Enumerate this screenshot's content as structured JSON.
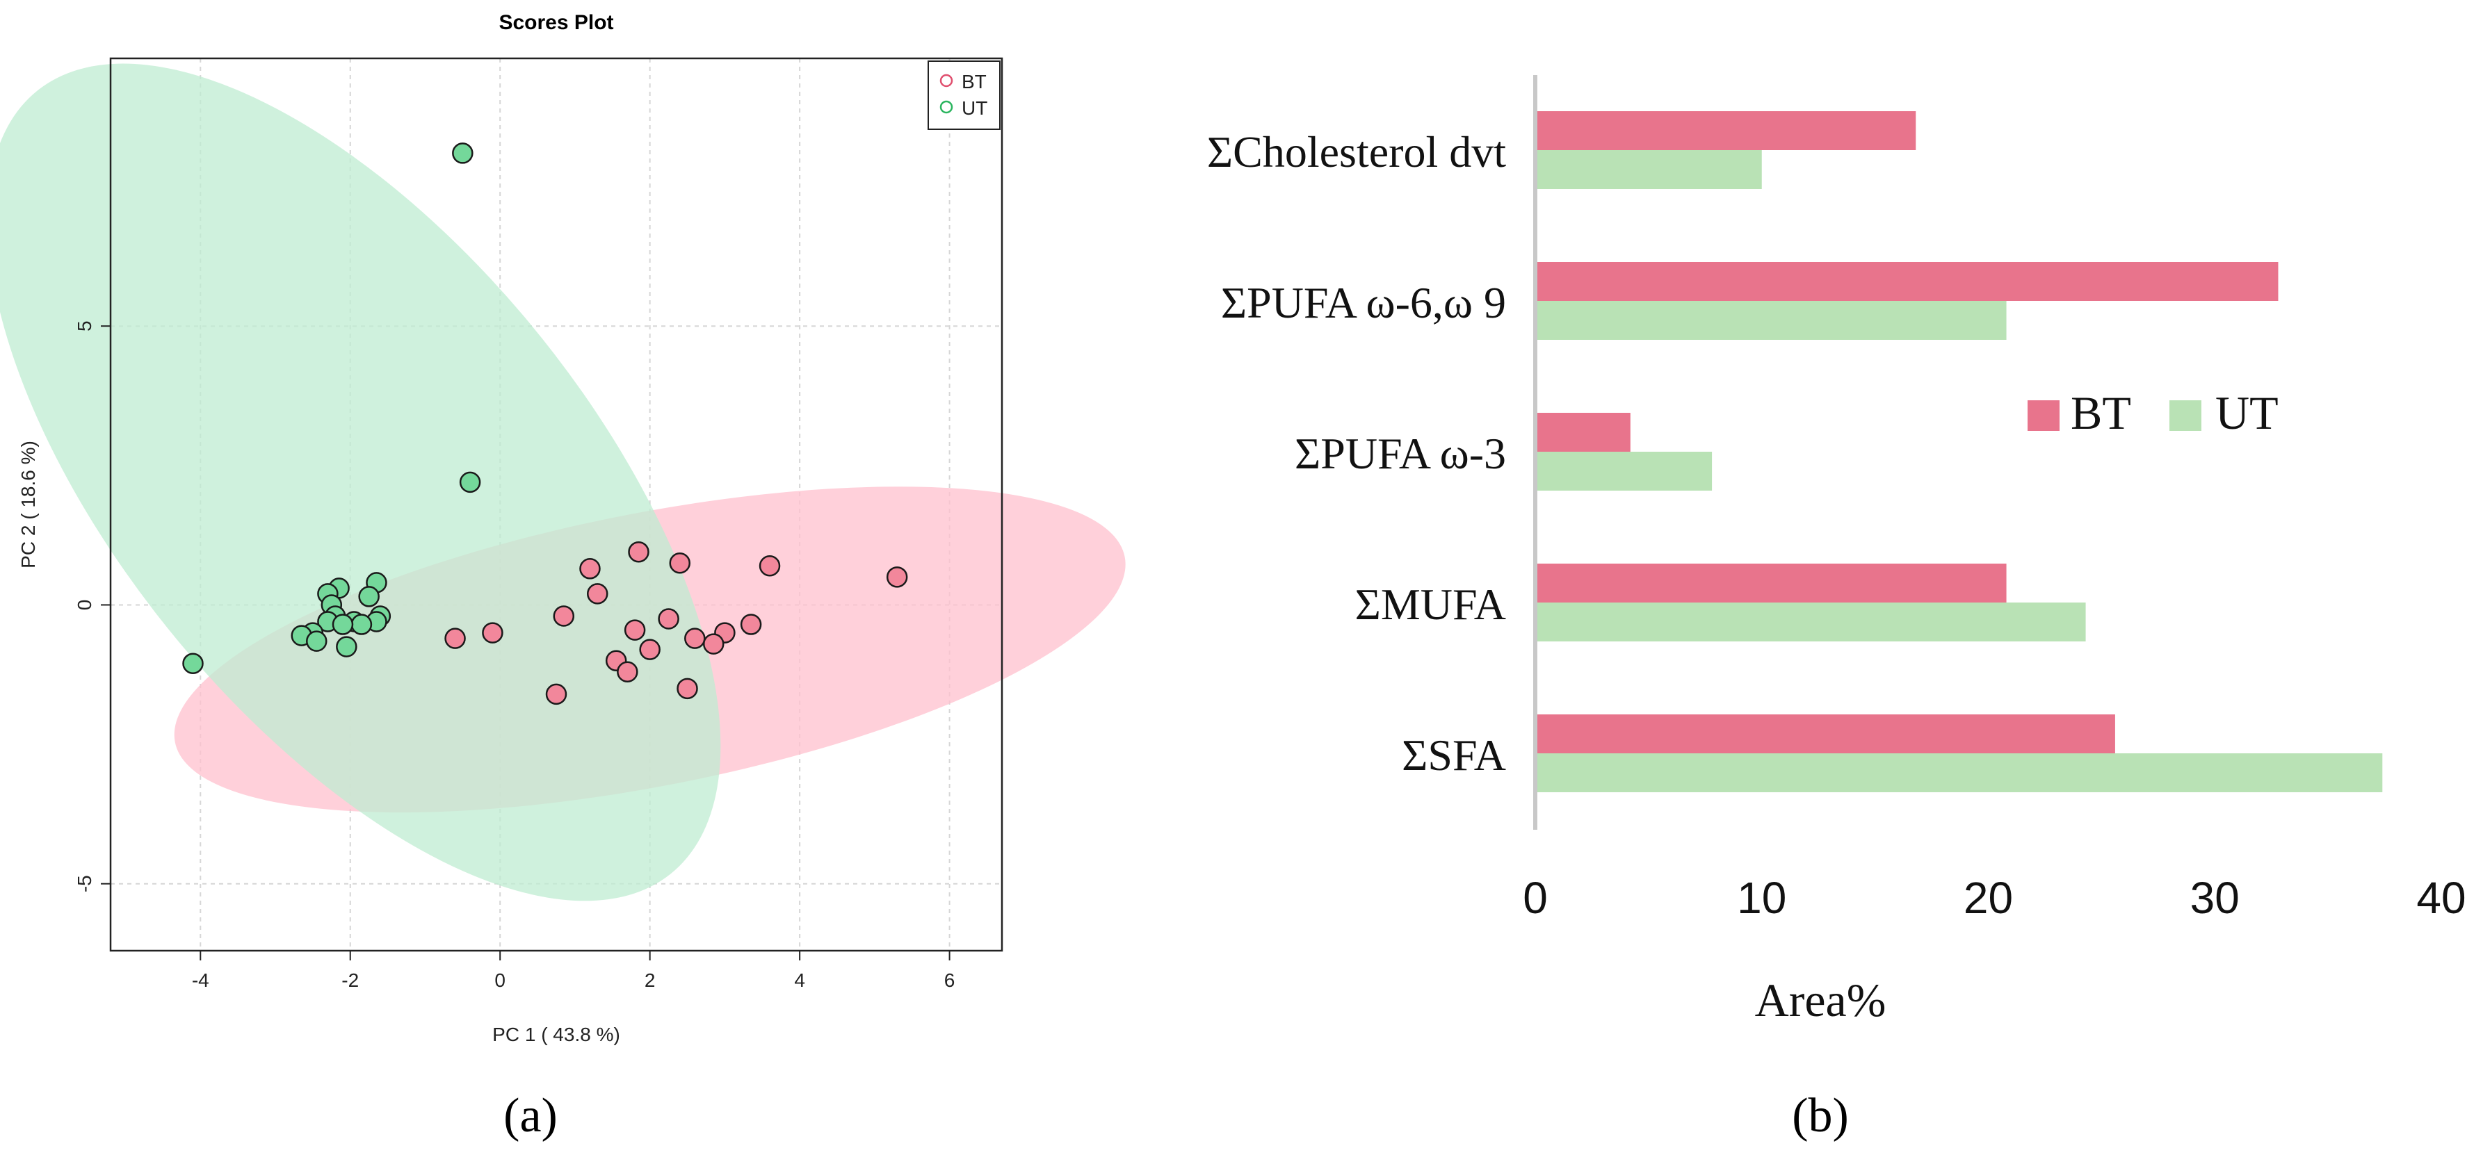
{
  "colors": {
    "bt_fill": "#f2879b",
    "bt_edge": "#d94a6a",
    "ut_fill": "#74d89a",
    "ut_edge": "#2bb55f",
    "bt_ellipse": "#ffc0cd",
    "ut_ellipse": "#bfecd2",
    "bt_bar": "#e8748c",
    "ut_bar": "#b9e2b5",
    "grid": "#d6d6d6"
  },
  "chart_data": [
    {
      "type": "scatter",
      "title": "Scores Plot",
      "xlabel": "PC 1 ( 43.8 %)",
      "ylabel": "PC 2 ( 18.6 %)",
      "xlim": [
        -5.2,
        6.7
      ],
      "ylim": [
        -6.2,
        9.8
      ],
      "x_ticks": [
        -4,
        -2,
        0,
        2,
        4,
        6
      ],
      "x_tick_labels": [
        "-4",
        "-2",
        "0",
        "2",
        "4",
        "6"
      ],
      "y_ticks": [
        -5,
        0,
        5
      ],
      "y_tick_labels": [
        "-5",
        "0",
        "5"
      ],
      "grid": true,
      "legend": {
        "position": "top-right",
        "entries": [
          "BT",
          "UT"
        ]
      },
      "ellipses": [
        {
          "group": "BT",
          "cx": 2.0,
          "cy": -0.8,
          "rx": 6.56,
          "ry": 2.41,
          "angle_deg": 15.7
        },
        {
          "group": "UT",
          "cx": -1.95,
          "cy": 2.2,
          "rx": 8.27,
          "ry": 3.45,
          "angle_deg": 117.5
        }
      ],
      "series": [
        {
          "name": "BT",
          "points": [
            [
              1.2,
              0.65
            ],
            [
              1.85,
              0.95
            ],
            [
              2.4,
              0.75
            ],
            [
              3.6,
              0.7
            ],
            [
              5.3,
              0.5
            ],
            [
              1.3,
              0.2
            ],
            [
              0.85,
              -0.2
            ],
            [
              2.25,
              -0.25
            ],
            [
              1.8,
              -0.45
            ],
            [
              3.35,
              -0.35
            ],
            [
              2.6,
              -0.6
            ],
            [
              3.0,
              -0.5
            ],
            [
              2.85,
              -0.7
            ],
            [
              -0.6,
              -0.6
            ],
            [
              -0.1,
              -0.5
            ],
            [
              2.0,
              -0.8
            ],
            [
              1.55,
              -1.0
            ],
            [
              1.7,
              -1.2
            ],
            [
              2.5,
              -1.5
            ],
            [
              0.75,
              -1.6
            ]
          ]
        },
        {
          "name": "UT",
          "points": [
            [
              -0.5,
              8.1
            ],
            [
              -0.4,
              2.2
            ],
            [
              -1.65,
              0.4
            ],
            [
              -2.15,
              0.3
            ],
            [
              -2.3,
              0.2
            ],
            [
              -1.75,
              0.15
            ],
            [
              -2.25,
              0.0
            ],
            [
              -2.2,
              -0.2
            ],
            [
              -2.3,
              -0.3
            ],
            [
              -1.95,
              -0.3
            ],
            [
              -1.6,
              -0.2
            ],
            [
              -1.65,
              -0.3
            ],
            [
              -1.85,
              -0.35
            ],
            [
              -2.1,
              -0.35
            ],
            [
              -2.5,
              -0.5
            ],
            [
              -2.65,
              -0.55
            ],
            [
              -2.45,
              -0.65
            ],
            [
              -2.05,
              -0.75
            ],
            [
              -4.1,
              -1.05
            ]
          ]
        }
      ]
    },
    {
      "type": "bar",
      "orientation": "horizontal",
      "categories": [
        "ΣCholesterol dvt",
        "ΣPUFA ω-6,ω 9",
        "ΣPUFA ω-3",
        "ΣMUFA",
        "ΣSFA"
      ],
      "series": [
        {
          "name": "BT",
          "values": [
            16.8,
            32.8,
            4.2,
            20.8,
            25.6
          ]
        },
        {
          "name": "UT",
          "values": [
            10.0,
            20.8,
            7.8,
            24.3,
            37.4
          ]
        }
      ],
      "xlabel": "Area%",
      "ylabel": "",
      "xlim": [
        0,
        40
      ],
      "x_ticks": [
        0,
        10,
        20,
        30,
        40
      ],
      "x_tick_labels": [
        "0",
        "10",
        "20",
        "30",
        "40"
      ],
      "legend": {
        "position": "center-right",
        "entries": [
          "BT",
          "UT"
        ]
      }
    }
  ],
  "panel_labels": {
    "a": "(a)",
    "b": "(b)"
  }
}
